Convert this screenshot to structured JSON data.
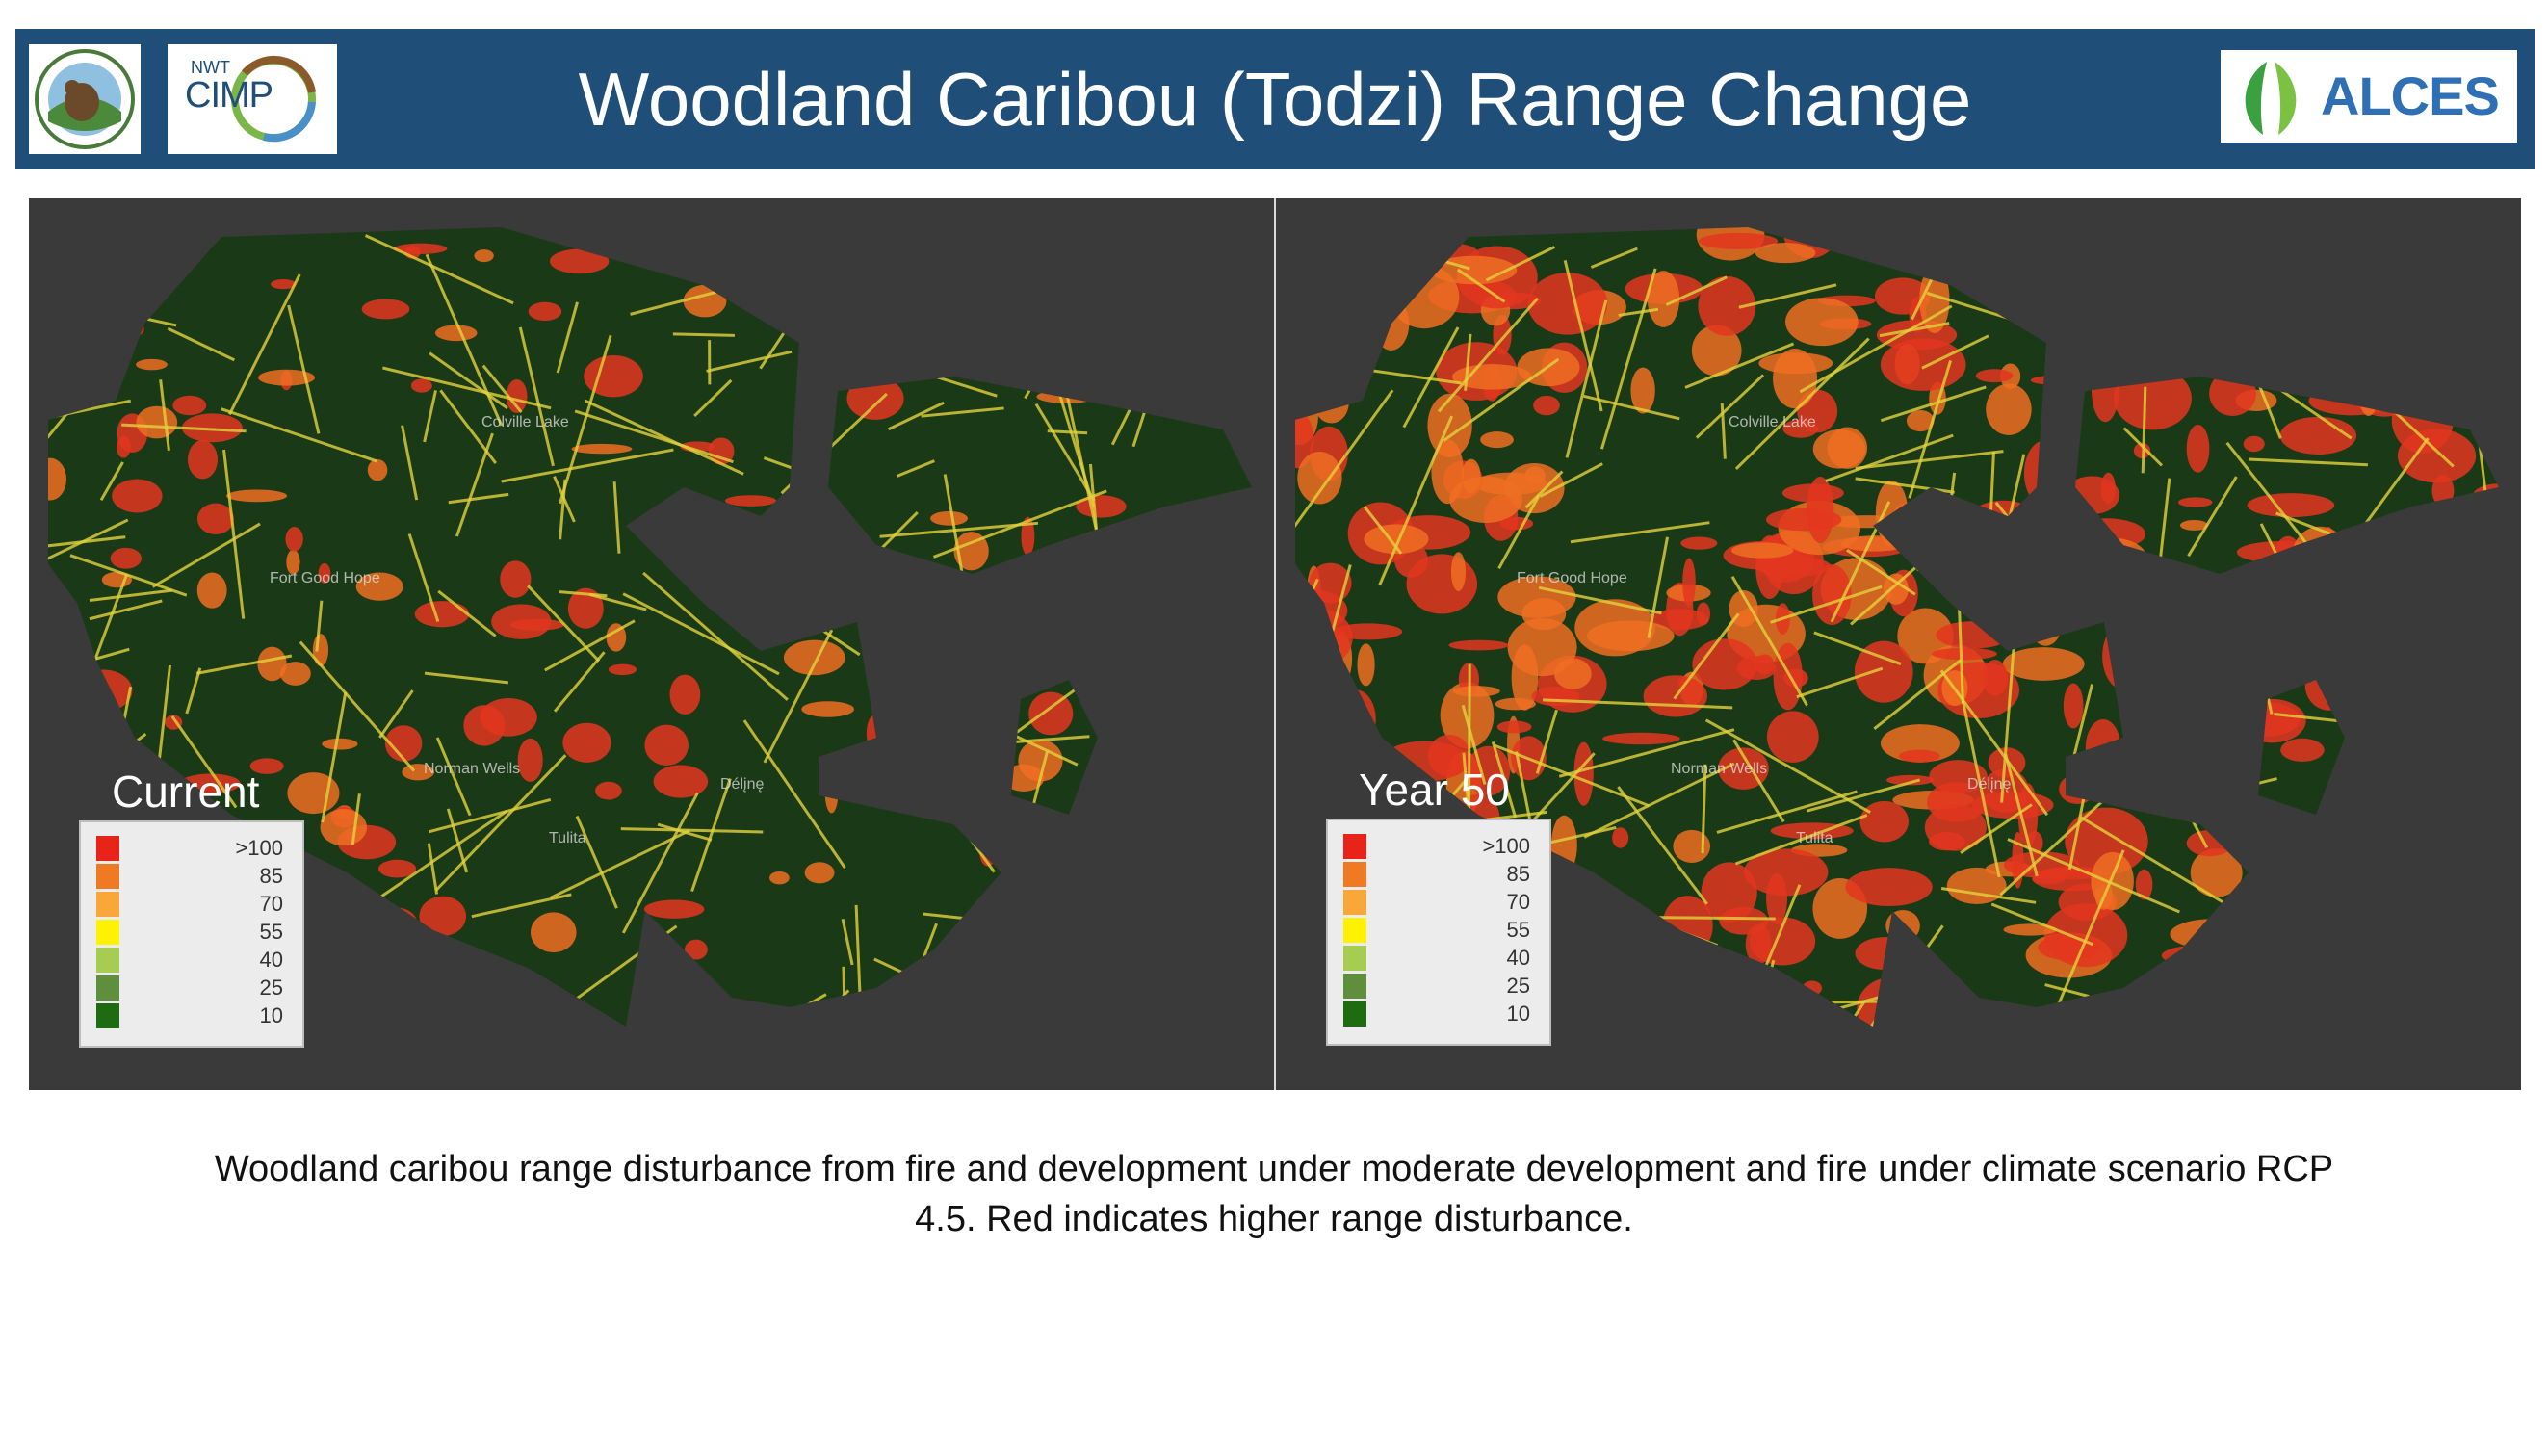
{
  "header": {
    "title": "Woodland Caribou (Todzi) Range Change",
    "logos": {
      "board": "Sahtu Renewable Resources Board",
      "cimp_small": "NWT",
      "cimp": "CIMP",
      "alces": "ALCES"
    },
    "color": "#1f4e79"
  },
  "panels": [
    {
      "label": "Current",
      "density": 0.22
    },
    {
      "label": "Year 50",
      "density": 0.55
    }
  ],
  "legend": {
    "entries": [
      {
        "label": ">100",
        "color": "#e8231a"
      },
      {
        "label": "85",
        "color": "#f07a21"
      },
      {
        "label": "70",
        "color": "#f9a738"
      },
      {
        "label": "55",
        "color": "#fff200"
      },
      {
        "label": "40",
        "color": "#a7cc52"
      },
      {
        "label": "25",
        "color": "#5f8f3c"
      },
      {
        "label": "10",
        "color": "#1f6b12"
      }
    ]
  },
  "places": [
    "Colville Lake",
    "Fort Good Hope",
    "Norman Wells",
    "Tulita",
    "Délįnę"
  ],
  "caption": "Woodland caribou range disturbance from fire and development under moderate development and fire under climate scenario RCP 4.5. Red indicates higher range disturbance.",
  "colors": {
    "map_bg": "#3a3a3a",
    "land": "#1a3a17",
    "line_yellow": "#e3d23c",
    "hot_red": "#e3361e",
    "hot_orange": "#ee6f22"
  }
}
